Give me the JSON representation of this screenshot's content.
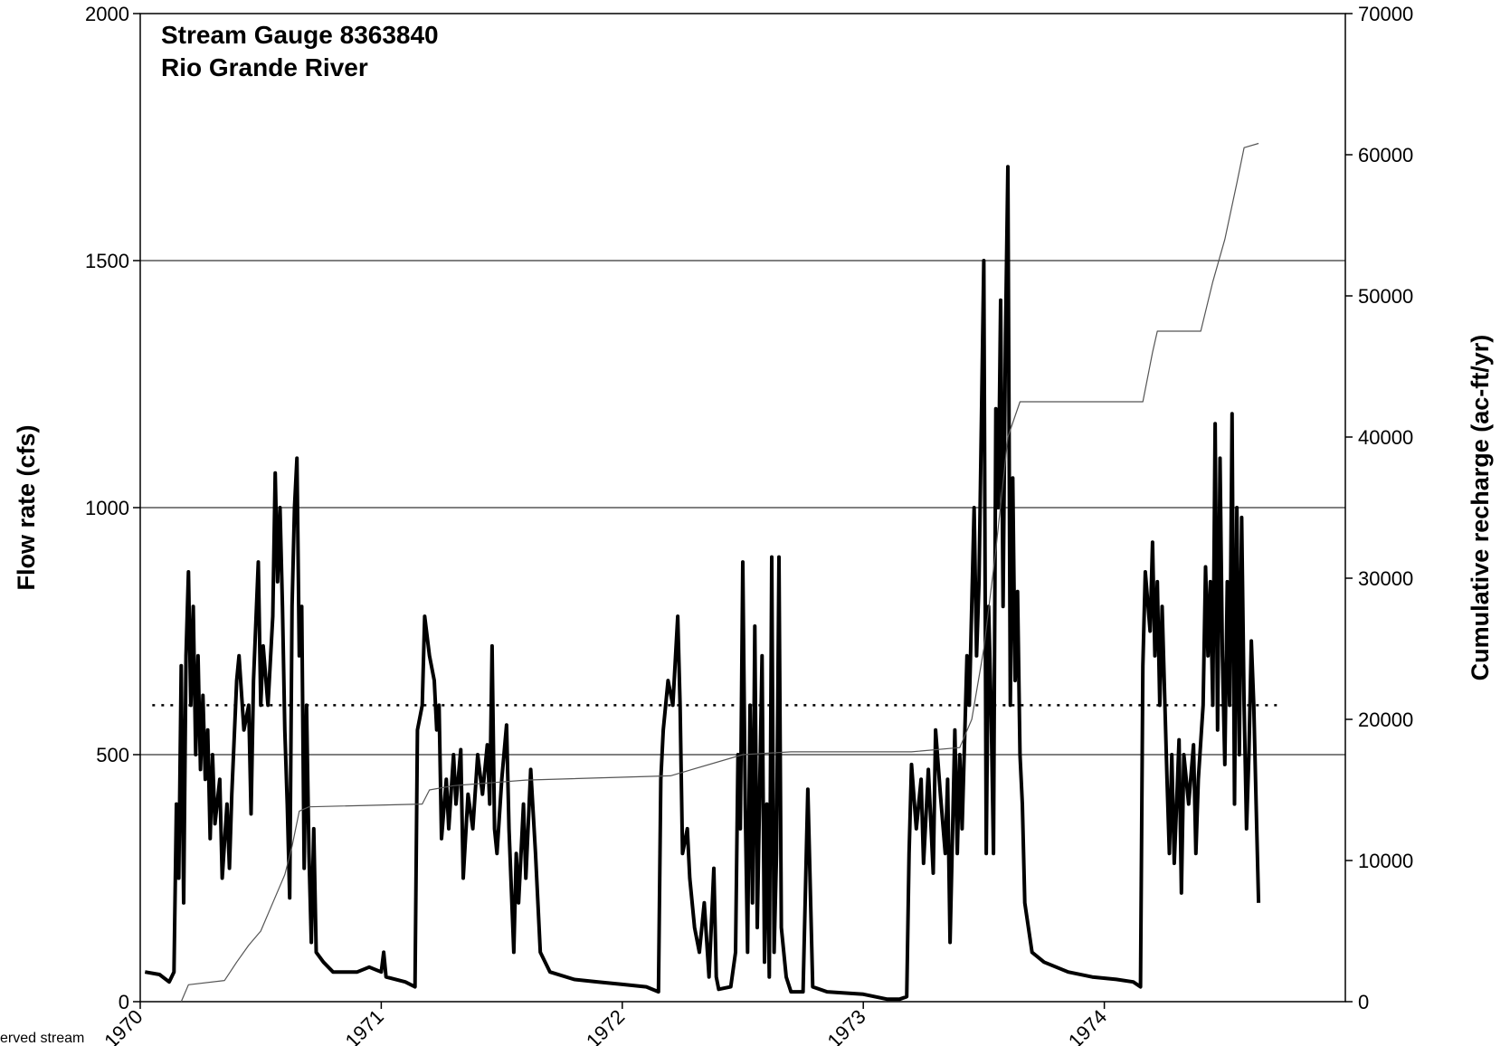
{
  "chart_data": {
    "type": "line",
    "title": "Stream Gauge 8363840",
    "subtitle": "Rio Grande River",
    "y_label": "Flow rate (cfs)",
    "y2_label": "Cumulative recharge (ac-ft/yr)",
    "annotation": "erved stream",
    "xlim": [
      1970,
      1975
    ],
    "xticks": [
      1970,
      1971,
      1972,
      1973,
      1974
    ],
    "ylim": [
      0,
      2000
    ],
    "yticks": [
      0,
      500,
      1000,
      1500,
      2000
    ],
    "y2lim": [
      0,
      70000
    ],
    "y2ticks": [
      0,
      10000,
      20000,
      30000,
      40000,
      50000,
      60000,
      70000
    ],
    "grid": true,
    "reference_line": {
      "value": 600,
      "color": "#000000"
    },
    "series": [
      {
        "name": "Flow rate",
        "color": "#000000",
        "x": [
          1970.02,
          1970.08,
          1970.12,
          1970.14,
          1970.15,
          1970.16,
          1970.17,
          1970.18,
          1970.19,
          1970.2,
          1970.21,
          1970.22,
          1970.23,
          1970.24,
          1970.25,
          1970.26,
          1970.27,
          1970.28,
          1970.29,
          1970.3,
          1970.31,
          1970.33,
          1970.34,
          1970.36,
          1970.37,
          1970.38,
          1970.4,
          1970.41,
          1970.43,
          1970.45,
          1970.46,
          1970.47,
          1970.49,
          1970.5,
          1970.51,
          1970.53,
          1970.55,
          1970.56,
          1970.57,
          1970.58,
          1970.59,
          1970.6,
          1970.61,
          1970.62,
          1970.63,
          1970.64,
          1970.65,
          1970.66,
          1970.67,
          1970.68,
          1970.69,
          1970.7,
          1970.71,
          1970.72,
          1970.73,
          1970.76,
          1970.8,
          1970.9,
          1970.95,
          1971.0,
          1971.01,
          1971.02,
          1971.1,
          1971.14,
          1971.15,
          1971.17,
          1971.18,
          1971.2,
          1971.22,
          1971.23,
          1971.24,
          1971.25,
          1971.27,
          1971.28,
          1971.3,
          1971.31,
          1971.33,
          1971.34,
          1971.36,
          1971.38,
          1971.4,
          1971.42,
          1971.44,
          1971.45,
          1971.46,
          1971.47,
          1971.48,
          1971.5,
          1971.52,
          1971.53,
          1971.55,
          1971.56,
          1971.57,
          1971.59,
          1971.6,
          1971.62,
          1971.64,
          1971.66,
          1971.7,
          1971.8,
          1971.9,
          1972.0,
          1972.1,
          1972.15,
          1972.16,
          1972.17,
          1972.19,
          1972.21,
          1972.23,
          1972.24,
          1972.25,
          1972.27,
          1972.28,
          1972.3,
          1972.32,
          1972.34,
          1972.36,
          1972.38,
          1972.39,
          1972.4,
          1972.45,
          1972.47,
          1972.48,
          1972.49,
          1972.5,
          1972.51,
          1972.52,
          1972.53,
          1972.54,
          1972.55,
          1972.56,
          1972.58,
          1972.59,
          1972.6,
          1972.61,
          1972.62,
          1972.63,
          1972.64,
          1972.65,
          1972.66,
          1972.68,
          1972.7,
          1972.75,
          1972.77,
          1972.79,
          1972.85,
          1973.0,
          1973.1,
          1973.15,
          1973.18,
          1973.19,
          1973.2,
          1973.22,
          1973.24,
          1973.25,
          1973.27,
          1973.29,
          1973.3,
          1973.32,
          1973.34,
          1973.35,
          1973.36,
          1973.38,
          1973.39,
          1973.4,
          1973.41,
          1973.43,
          1973.44,
          1973.46,
          1973.47,
          1973.48,
          1973.5,
          1973.51,
          1973.52,
          1973.53,
          1973.54,
          1973.55,
          1973.56,
          1973.57,
          1973.58,
          1973.59,
          1973.6,
          1973.61,
          1973.62,
          1973.63,
          1973.64,
          1973.65,
          1973.66,
          1973.67,
          1973.7,
          1973.75,
          1973.85,
          1973.95,
          1974.05,
          1974.12,
          1974.15,
          1974.16,
          1974.17,
          1974.19,
          1974.2,
          1974.21,
          1974.22,
          1974.23,
          1974.24,
          1974.26,
          1974.27,
          1974.28,
          1974.29,
          1974.3,
          1974.31,
          1974.32,
          1974.33,
          1974.35,
          1974.37,
          1974.38,
          1974.39,
          1974.41,
          1974.42,
          1974.43,
          1974.44,
          1974.45,
          1974.46,
          1974.47,
          1974.48,
          1974.49,
          1974.5,
          1974.51,
          1974.52,
          1974.53,
          1974.54,
          1974.55,
          1974.56,
          1974.57,
          1974.58,
          1974.59,
          1974.6,
          1974.61,
          1974.62,
          1974.63,
          1974.64
        ],
        "values": [
          60,
          55,
          40,
          60,
          400,
          250,
          680,
          200,
          700,
          870,
          600,
          800,
          500,
          700,
          470,
          620,
          450,
          550,
          330,
          500,
          360,
          450,
          250,
          400,
          270,
          420,
          650,
          700,
          550,
          600,
          380,
          650,
          890,
          600,
          720,
          600,
          780,
          1070,
          850,
          1000,
          800,
          550,
          400,
          210,
          800,
          1000,
          1100,
          700,
          800,
          270,
          600,
          300,
          120,
          350,
          100,
          80,
          60,
          60,
          70,
          60,
          100,
          50,
          40,
          30,
          550,
          600,
          780,
          700,
          650,
          550,
          600,
          330,
          450,
          350,
          500,
          400,
          510,
          250,
          420,
          350,
          500,
          420,
          520,
          400,
          720,
          350,
          300,
          450,
          560,
          350,
          100,
          300,
          200,
          400,
          250,
          470,
          300,
          100,
          60,
          45,
          40,
          35,
          30,
          20,
          450,
          550,
          650,
          600,
          780,
          600,
          300,
          350,
          250,
          150,
          100,
          200,
          50,
          270,
          50,
          25,
          30,
          100,
          500,
          350,
          890,
          400,
          100,
          600,
          200,
          760,
          150,
          700,
          80,
          400,
          50,
          900,
          100,
          300,
          900,
          150,
          50,
          20,
          20,
          430,
          30,
          20,
          15,
          5,
          5,
          10,
          300,
          480,
          350,
          450,
          280,
          470,
          260,
          550,
          420,
          300,
          450,
          120,
          550,
          300,
          500,
          350,
          700,
          600,
          1000,
          700,
          850,
          1500,
          300,
          800,
          600,
          300,
          1200,
          1000,
          1420,
          800,
          1350,
          1690,
          600,
          1060,
          650,
          830,
          500,
          400,
          200,
          100,
          80,
          60,
          50,
          45,
          40,
          30,
          680,
          870,
          750,
          930,
          700,
          850,
          600,
          800,
          450,
          300,
          500,
          280,
          400,
          530,
          220,
          500,
          400,
          520,
          300,
          450,
          600,
          880,
          700,
          850,
          600,
          1170,
          550,
          1100,
          700,
          480,
          850,
          600,
          1190,
          400,
          1000,
          500,
          980,
          600,
          350,
          500,
          730,
          600,
          400,
          200
        ]
      },
      {
        "name": "Cumulative recharge",
        "color": "#555555",
        "axis": "y2",
        "x": [
          1970.17,
          1970.2,
          1970.35,
          1970.4,
          1970.45,
          1970.5,
          1970.55,
          1970.6,
          1970.63,
          1970.66,
          1970.7,
          1971.17,
          1971.2,
          1971.3,
          1971.45,
          1971.6,
          1972.2,
          1972.5,
          1972.7,
          1973.2,
          1973.4,
          1973.45,
          1973.5,
          1973.55,
          1973.6,
          1973.65,
          1974.16,
          1974.2,
          1974.22,
          1974.4,
          1974.45,
          1974.5,
          1974.55,
          1974.58,
          1974.64
        ],
        "values": [
          0,
          1200,
          1500,
          2800,
          4000,
          5000,
          7000,
          9000,
          11000,
          13500,
          13800,
          14000,
          15000,
          15300,
          15500,
          15700,
          16000,
          17500,
          17700,
          17700,
          18000,
          20000,
          25000,
          32000,
          40000,
          42500,
          42500,
          46000,
          47500,
          47500,
          51000,
          54000,
          58000,
          60500,
          60800
        ]
      }
    ]
  }
}
